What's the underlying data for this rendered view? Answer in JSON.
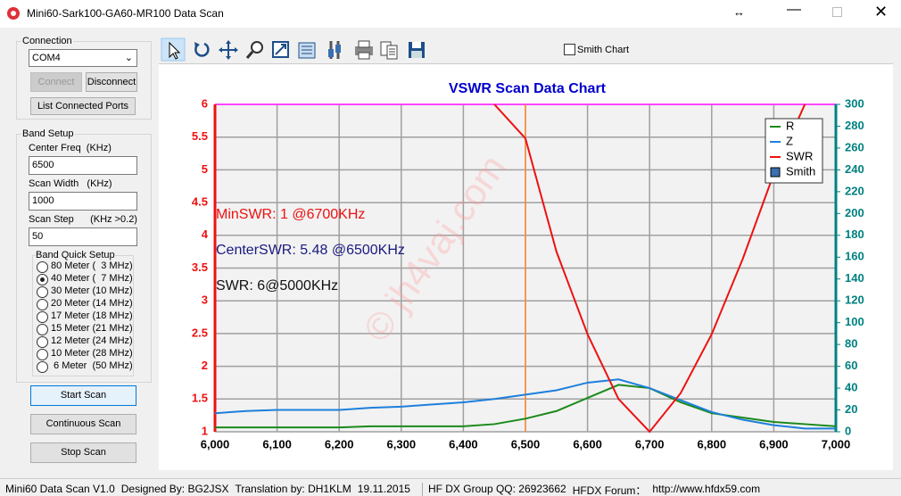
{
  "window": {
    "title": "Mini60-Sark100-GA60-MR100 Data Scan"
  },
  "connection": {
    "group": "Connection",
    "port": "COM4",
    "connect": "Connect",
    "disconnect": "Disconnect",
    "list_ports": "List Connected Ports"
  },
  "band_setup": {
    "group": "Band Setup",
    "fields": [
      {
        "label": "Center Freq  (KHz)",
        "value": "6500"
      },
      {
        "label": "Scan Width   (KHz)",
        "value": "1000"
      },
      {
        "label": "Scan Step      (KHz >0.2)",
        "value": "50"
      }
    ],
    "quick": {
      "group": "Band Quick Setup",
      "selected": 1,
      "options": [
        "80 Meter (  3 MHz)",
        "40 Meter (  7 MHz)",
        "30 Meter (10 MHz)",
        "20 Meter (14 MHz)",
        "17 Meter (18 MHz)",
        "15 Meter (21 MHz)",
        "12 Meter (24 MHz)",
        "10 Meter (28 MHz)",
        " 6 Meter  (50 MHz)"
      ]
    }
  },
  "buttons": [
    "Start Scan",
    "Continuous Scan",
    "Stop Scan"
  ],
  "toolbar": {
    "smith_checkbox": "Smith Chart"
  },
  "status_bar": [
    "Mini60 Data Scan V1.0",
    "Designed By: BG2JSX",
    "Translation by: DH1KLM",
    "19.11.2015",
    "HF DX Group QQ: 26923662",
    "HFDX Forum：",
    "http://www.hfdx59.com"
  ],
  "chart_data": {
    "type": "line",
    "title": "VSWR Scan Data Chart",
    "x": [
      6000,
      6050,
      6100,
      6150,
      6200,
      6250,
      6300,
      6350,
      6400,
      6450,
      6500,
      6550,
      6600,
      6650,
      6700,
      6750,
      6800,
      6850,
      6900,
      6950,
      7000
    ],
    "series": [
      {
        "name": "R",
        "color": "#1a8a1a",
        "axis": "y2",
        "values": [
          4,
          4,
          4,
          4,
          4,
          5,
          5,
          5,
          5,
          7,
          12,
          19,
          31,
          43,
          40,
          27,
          17,
          13,
          9,
          7,
          5
        ]
      },
      {
        "name": "Z",
        "color": "#1e7fdc",
        "axis": "y2",
        "values": [
          17,
          19,
          20,
          20,
          20,
          22,
          23,
          25,
          27,
          30,
          34,
          38,
          45,
          48,
          40,
          29,
          18,
          11,
          6,
          3,
          3
        ]
      },
      {
        "name": "SWR",
        "color": "#ee1111",
        "values": [
          null,
          null,
          null,
          null,
          null,
          null,
          null,
          null,
          null,
          6.0,
          5.48,
          3.75,
          2.49,
          1.5,
          1,
          1.59,
          2.49,
          3.64,
          4.94,
          6.0,
          null
        ]
      }
    ],
    "smith_legend": "Smith",
    "xlim": [
      6000,
      7000
    ],
    "xticks": [
      {
        "value": 6000,
        "label": "6,000"
      },
      {
        "value": 6100,
        "label": "6,100"
      },
      {
        "value": 6200,
        "label": "6,200"
      },
      {
        "value": 6300,
        "label": "6,300"
      },
      {
        "value": 6400,
        "label": "6,400"
      },
      {
        "value": 6500,
        "label": "6,500"
      },
      {
        "value": 6600,
        "label": "6,600"
      },
      {
        "value": 6700,
        "label": "6,700"
      },
      {
        "value": 6800,
        "label": "6,800"
      },
      {
        "value": 6900,
        "label": "6,900"
      },
      {
        "value": 7000,
        "label": "7,000"
      }
    ],
    "ylim": [
      1,
      6
    ],
    "yticks": [
      1,
      1.5,
      2,
      2.5,
      3,
      3.5,
      4,
      4.5,
      5,
      5.5,
      6
    ],
    "y2lim": [
      0,
      300
    ],
    "y2ticks": [
      0,
      20,
      40,
      60,
      80,
      100,
      120,
      140,
      160,
      180,
      200,
      220,
      240,
      260,
      280,
      300
    ],
    "grid": true,
    "marker_x": 6500,
    "annotations": [
      {
        "text": "MinSWR: 1 @6700KHz",
        "color": "#ee1111"
      },
      {
        "text": "CenterSWR: 5.48 @6500KHz",
        "color": "#1a1a80"
      },
      {
        "text": "SWR: 6@5000KHz",
        "color": "#111111"
      }
    ],
    "watermark": "© jh4vaj.com"
  }
}
